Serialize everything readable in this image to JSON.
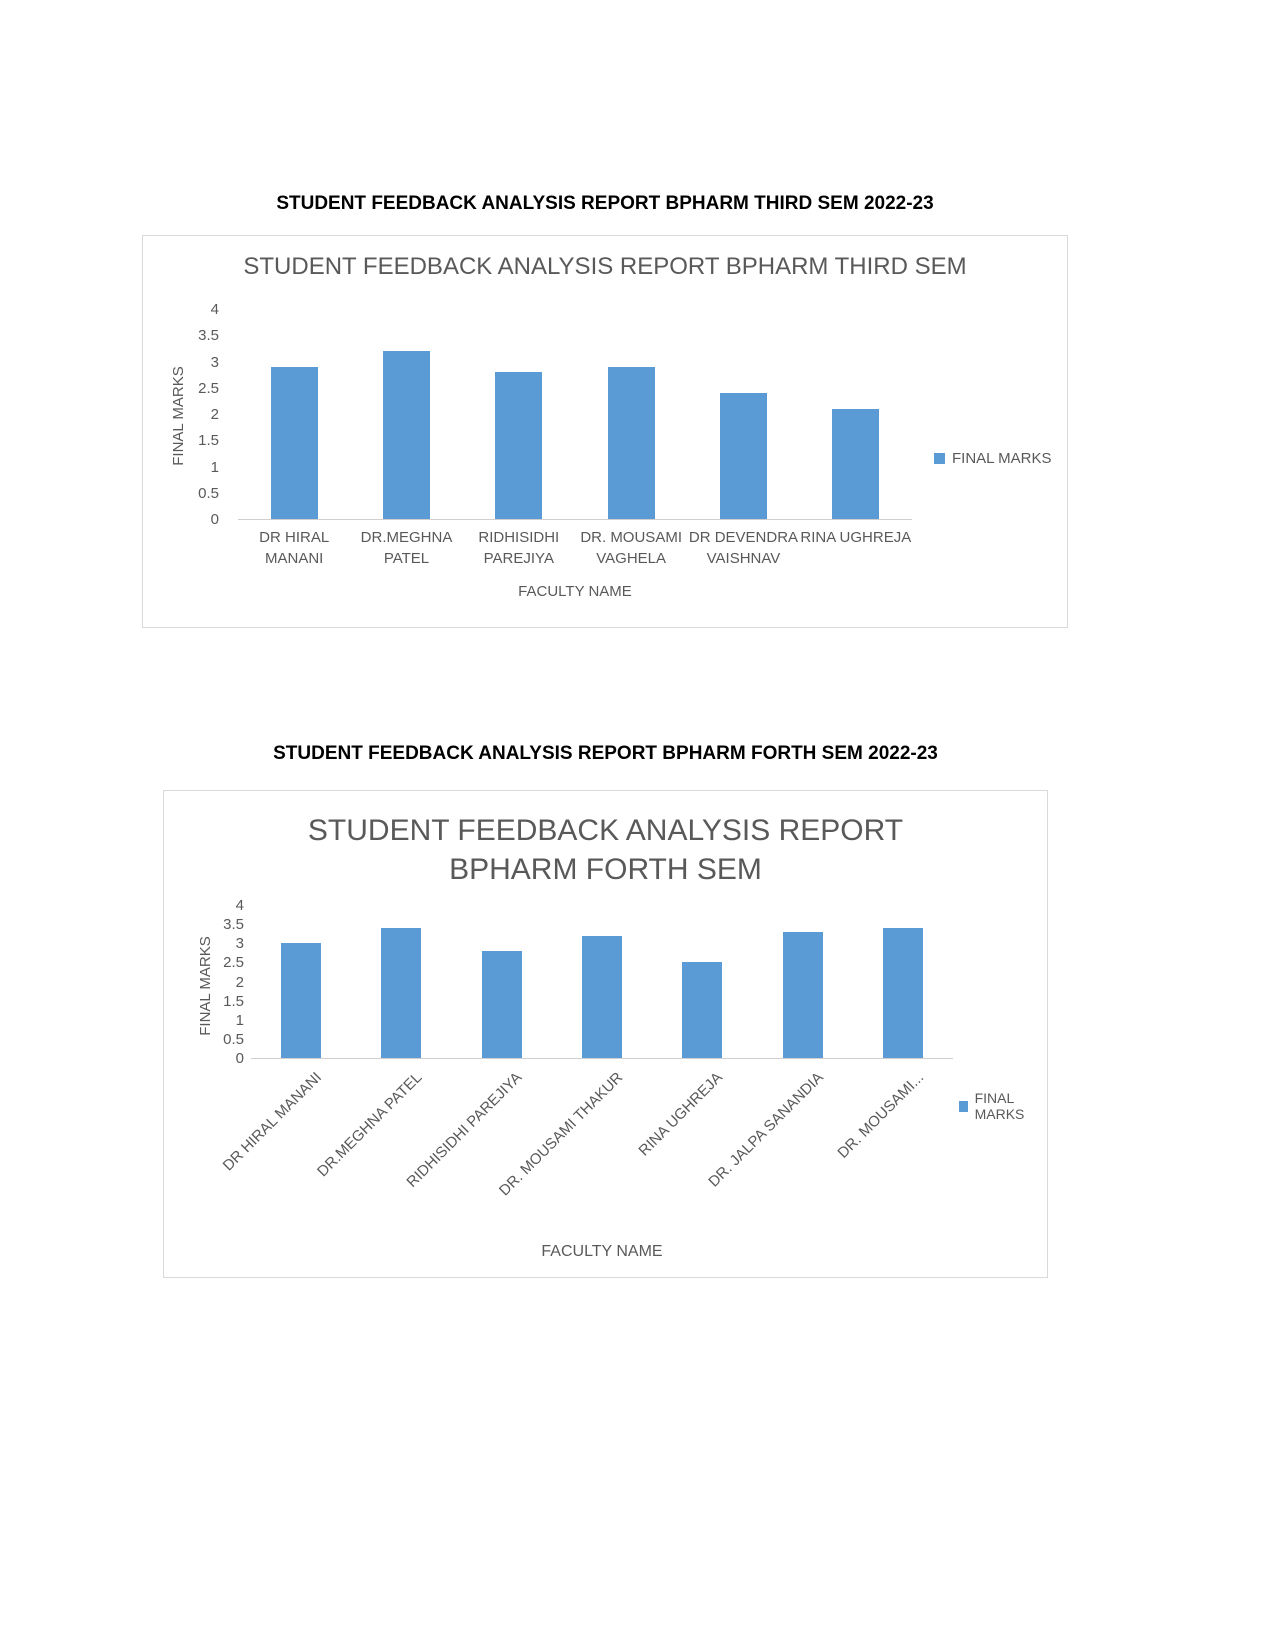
{
  "page": {
    "headings": {
      "third_sem": "STUDENT FEEDBACK ANALYSIS REPORT BPHARM THIRD SEM 2022-23",
      "forth_sem": "STUDENT FEEDBACK ANALYSIS REPORT BPHARM FORTH SEM 2022-23"
    }
  },
  "colors": {
    "bar": "#5b9bd5",
    "chart_title": "#595959",
    "axis_text": "#595959",
    "heading_text": "#000000",
    "chart_border": "#d9d9d9",
    "axis_line": "#d0cece"
  },
  "chart_data": [
    {
      "type": "bar",
      "title": "STUDENT FEEDBACK ANALYSIS REPORT BPHARM  THIRD SEM",
      "title_lines": [
        "STUDENT FEEDBACK ANALYSIS REPORT BPHARM  THIRD SEM"
      ],
      "categories": [
        "DR HIRAL MANANI",
        "DR.MEGHNA PATEL",
        "RIDHISIDHI PAREJIYA",
        "DR. MOUSAMI VAGHELA",
        "DR DEVENDRA VAISHNAV",
        "RINA UGHREJA"
      ],
      "categories_display": [
        [
          "DR HIRAL",
          "MANANI"
        ],
        [
          "DR.MEGHNA",
          "PATEL"
        ],
        [
          "RIDHISIDHI",
          "PAREJIYA"
        ],
        [
          "DR. MOUSAMI",
          "VAGHELA"
        ],
        [
          "DR DEVENDRA",
          "VAISHNAV"
        ],
        [
          "RINA UGHREJA"
        ]
      ],
      "values": [
        2.9,
        3.2,
        2.8,
        2.9,
        2.4,
        2.1
      ],
      "xlabel": "FACULTY NAME",
      "ylabel": "FINAL MARKS",
      "ylim": [
        0,
        4
      ],
      "yticks": [
        4,
        3.5,
        3,
        2.5,
        2,
        1.5,
        1,
        0.5,
        0
      ],
      "grid": "off",
      "legend": "FINAL MARKS",
      "legend_position": "right",
      "label_rotation": 0
    },
    {
      "type": "bar",
      "title": "STUDENT FEEDBACK ANALYSIS REPORT BPHARM  FORTH SEM",
      "title_lines": [
        "STUDENT FEEDBACK ANALYSIS REPORT",
        "BPHARM  FORTH SEM"
      ],
      "categories": [
        "DR HIRAL MANANI",
        "DR.MEGHNA PATEL",
        "RIDHISIDHI PAREJIYA",
        "DR. MOUSAMI THAKUR",
        "RINA UGHREJA",
        "DR. JALPA SANANDIA",
        "DR. MOUSAMI..."
      ],
      "values": [
        3.0,
        3.4,
        2.8,
        3.2,
        2.5,
        3.3,
        3.4
      ],
      "xlabel": "FACULTY NAME",
      "ylabel": "FINAL MARKS",
      "ylim": [
        0,
        4
      ],
      "yticks": [
        4,
        3.5,
        3,
        2.5,
        2,
        1.5,
        1,
        0.5,
        0
      ],
      "grid": "off",
      "legend": "FINAL MARKS",
      "legend_position": "right",
      "label_rotation": 45
    }
  ]
}
